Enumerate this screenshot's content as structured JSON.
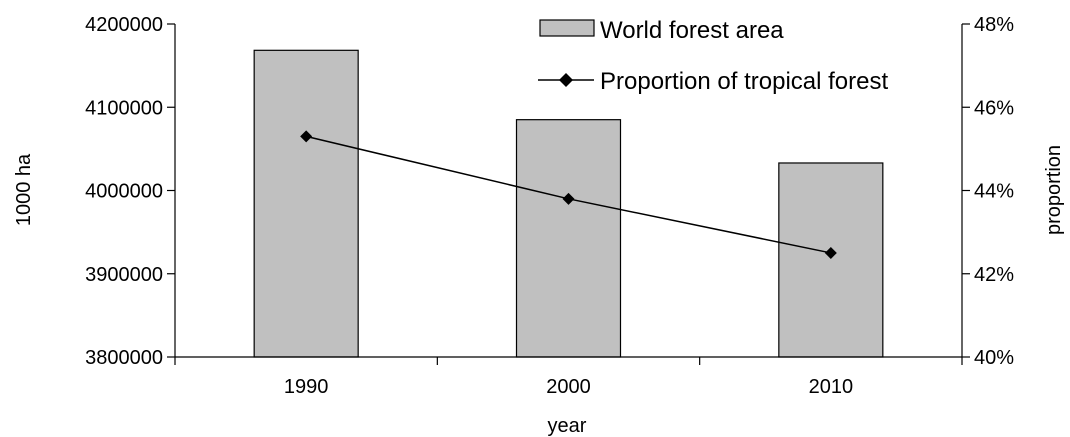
{
  "chart_data": {
    "type": "bar",
    "categories": [
      "1990",
      "2000",
      "2010"
    ],
    "series": [
      {
        "name": "World forest area",
        "type": "bar",
        "axis": "left",
        "values": [
          4168399,
          4085063,
          4033060
        ],
        "color": "#c0c0c0"
      },
      {
        "name": "Proportion of tropical forest",
        "type": "line",
        "axis": "right",
        "values": [
          45.3,
          43.8,
          42.5
        ],
        "color": "#000000"
      }
    ],
    "xlabel": "year",
    "ylabel": "1000 ha",
    "y2label": "proportion",
    "ylim": [
      3800000,
      4200000
    ],
    "yticks": [
      "3800000",
      "3900000",
      "4000000",
      "4100000",
      "4200000"
    ],
    "y2lim": [
      40,
      48
    ],
    "y2ticks": [
      "40%",
      "42%",
      "44%",
      "46%",
      "48%"
    ],
    "grid": false,
    "legend_position": "top-center"
  }
}
